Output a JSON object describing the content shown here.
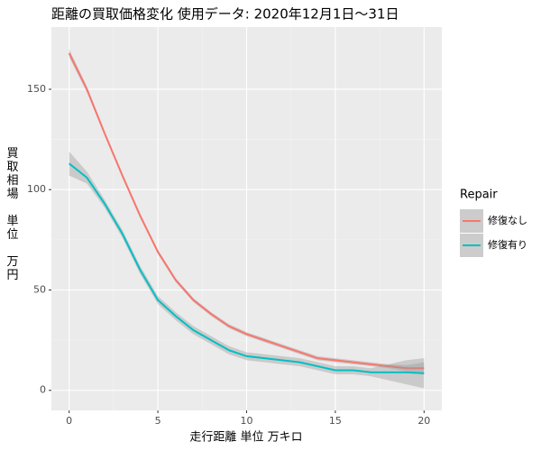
{
  "chart_data": {
    "type": "line",
    "title": "距離の買取価格変化 使用データ: 2020年12月1日～31日",
    "x_label": "走行距離 単位 万キロ",
    "y_label": "買取相場 単位 万円",
    "legend_title": "Repair",
    "x": [
      0,
      1,
      2,
      3,
      4,
      5,
      6,
      7,
      8,
      9,
      10,
      11,
      12,
      13,
      14,
      15,
      16,
      17,
      18,
      19,
      20
    ],
    "series": [
      {
        "name": "修復なし",
        "color": "#F8766D",
        "values": [
          168,
          150,
          128,
          107,
          87,
          69,
          55,
          45,
          38,
          32,
          28,
          25,
          22,
          19,
          16,
          15,
          14,
          13,
          12,
          11,
          11
        ],
        "lower": [
          166,
          148.5,
          127,
          106,
          86,
          68,
          54,
          44,
          37,
          31,
          27,
          24,
          21,
          18,
          15,
          14,
          13,
          12,
          11,
          9.5,
          8
        ],
        "upper": [
          170,
          151.5,
          129,
          108,
          88,
          70,
          56,
          46,
          39,
          33,
          29,
          26,
          23,
          20,
          17,
          16,
          15,
          14,
          13,
          12.5,
          14
        ]
      },
      {
        "name": "修復有り",
        "color": "#00BFC4",
        "values": [
          113,
          106,
          93,
          78,
          60,
          45,
          37,
          30,
          25,
          20,
          17,
          16,
          15,
          14,
          12,
          10,
          10,
          9,
          9,
          9,
          8.5
        ],
        "lower": [
          107,
          103,
          91,
          76,
          58,
          43,
          35,
          28,
          23,
          18,
          15,
          14,
          13,
          12,
          10,
          8,
          8,
          7,
          5,
          3,
          1
        ],
        "upper": [
          119,
          109,
          95,
          80,
          62,
          47,
          39,
          32,
          27,
          22,
          19,
          18,
          17,
          16,
          14,
          12,
          12,
          11,
          13,
          15,
          16
        ]
      }
    ],
    "xlim": [
      -1,
      21
    ],
    "ylim": [
      -10,
      181
    ],
    "xticks": [
      0,
      5,
      10,
      15,
      20
    ],
    "yticks": [
      0,
      50,
      100,
      150
    ],
    "grid": true
  }
}
